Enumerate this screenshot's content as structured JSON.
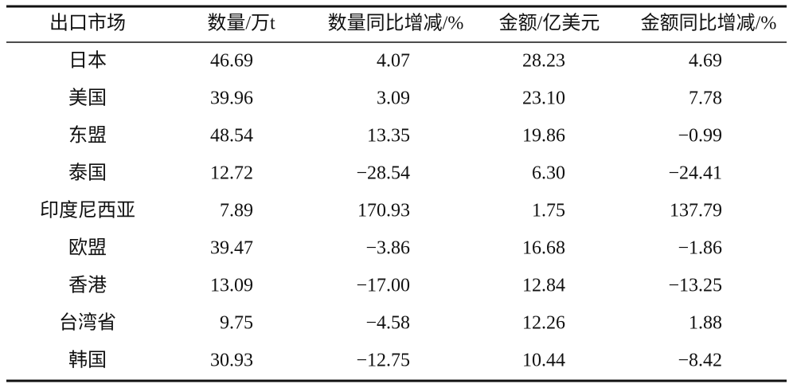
{
  "table": {
    "header": [
      "出口市场",
      "数量/万t",
      "数量同比增减/%",
      "金额/亿美元",
      "金额同比增减/%"
    ],
    "rows": [
      [
        "日本",
        "46.69",
        "4.07",
        "28.23",
        "4.69"
      ],
      [
        "美国",
        "39.96",
        "3.09",
        "23.10",
        "7.78"
      ],
      [
        "东盟",
        "48.54",
        "13.35",
        "19.86",
        "−0.99"
      ],
      [
        "泰国",
        "12.72",
        "−28.54",
        "6.30",
        "−24.41"
      ],
      [
        "印度尼西亚",
        "7.89",
        "170.93",
        "1.75",
        "137.79"
      ],
      [
        "欧盟",
        "39.47",
        "−3.86",
        "16.68",
        "−1.86"
      ],
      [
        "香港",
        "13.09",
        "−17.00",
        "12.84",
        "−13.25"
      ],
      [
        "台湾省",
        "9.75",
        "−4.58",
        "12.26",
        "1.88"
      ],
      [
        "韩国",
        "30.93",
        "−12.75",
        "10.44",
        "−8.42"
      ]
    ]
  }
}
